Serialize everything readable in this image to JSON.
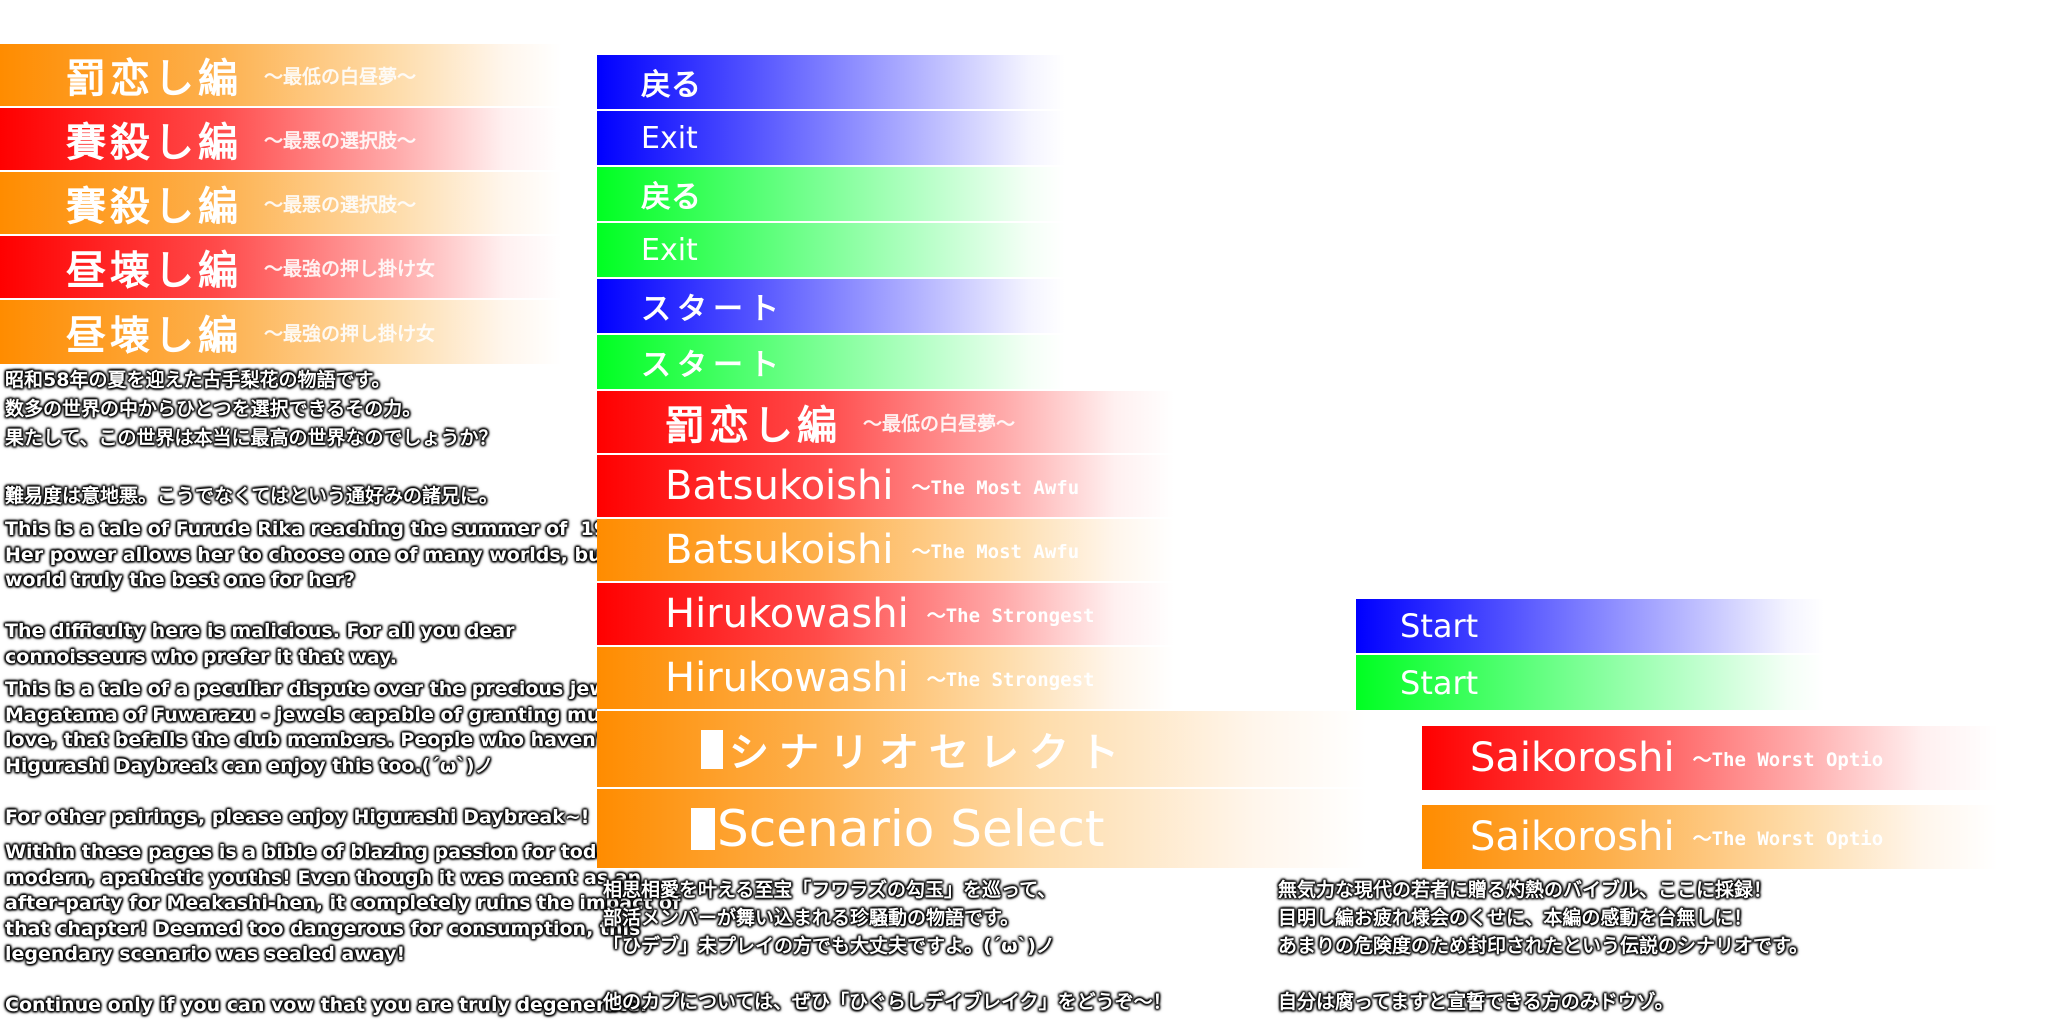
{
  "colors": {
    "orange": "#ff8c00",
    "red": "#ff0000",
    "blue": "#0000ff",
    "green": "#00ff22"
  },
  "left_banners": [
    {
      "title": "罰恋し編",
      "subtitle": "～最低の白昼夢～",
      "color": "orange"
    },
    {
      "title": "賽殺し編",
      "subtitle": "～最悪の選択肢～",
      "color": "red"
    },
    {
      "title": "賽殺し編",
      "subtitle": "～最悪の選択肢～",
      "color": "orange"
    },
    {
      "title": "昼壊し編",
      "subtitle": "～最強の押し掛け女",
      "color": "red"
    },
    {
      "title": "昼壊し編",
      "subtitle": "～最強の押し掛け女",
      "color": "orange"
    }
  ],
  "buttons": [
    {
      "label": "戻る",
      "color": "blue"
    },
    {
      "label": "Exit",
      "color": "blue"
    },
    {
      "label": "戻る",
      "color": "green"
    },
    {
      "label": "Exit",
      "color": "green"
    },
    {
      "label": "スタート",
      "color": "blue"
    },
    {
      "label": "スタート",
      "color": "green"
    }
  ],
  "mid_banners": [
    {
      "title": "罰恋し編",
      "subtitle": "～最低の白昼夢～",
      "color": "red"
    },
    {
      "title": "Batsukoishi",
      "subtitle": "～The Most Awfu",
      "color": "red"
    },
    {
      "title": "Batsukoishi",
      "subtitle": "～The Most Awfu",
      "color": "orange"
    },
    {
      "title": "Hirukowashi",
      "subtitle": "～The Strongest",
      "color": "red"
    },
    {
      "title": "Hirukowashi",
      "subtitle": "～The Strongest",
      "color": "orange"
    }
  ],
  "scenario_select": {
    "jp": "シナリオセレクト",
    "en": "Scenario Select"
  },
  "start_buttons": [
    {
      "label": "Start",
      "color": "blue"
    },
    {
      "label": "Start",
      "color": "green"
    }
  ],
  "saikoroshi": [
    {
      "title": "Saikoroshi",
      "subtitle": "～The Worst Optio",
      "color": "red"
    },
    {
      "title": "Saikoroshi",
      "subtitle": "～The Worst Optio",
      "color": "orange"
    }
  ],
  "descriptions": {
    "hirukowashi_jp": "昭和58年の夏を迎えた古手梨花の物語です。\n数多の世界の中からひとつを選択できるその力。\n果たして、この世界は本当に最高の世界なのでしょうか？\n\n難易度は意地悪。こうでなくてはという通好みの諸兄に。",
    "hirukowashi_en": "This is a tale of Furude Rika reaching the summer of  1983.\nHer power allows her to choose one of many worlds, but is this\nworld truly the best one for her?\n\nThe difficulty here is malicious. For all you dear\nconnoisseurs who prefer it that way.",
    "batsukoishi_en": "This is a tale of a peculiar dispute over the precious jewels, the\nMagatama of Fuwarazu - jewels capable of granting mutual\nlove, that befalls the club members. People who haven't played\nHigurashi Daybreak can enjoy this too.(´ω`)ノ\n\nFor other pairings, please enjoy Higurashi Daybreak~!",
    "saikoroshi_en": "Within these pages is a bible of blazing passion for today's\nmodern, apathetic youths! Even though it was meant as an\nafter-party for Meakashi-hen, it completely ruins the impact of\nthat chapter! Deemed too dangerous for consumption, this\nlegendary scenario was sealed away!\n\nContinue only if you can vow that you are truly degenerate.",
    "batsukoishi_jp": "相思相愛を叶える至宝「フワラズの勾玉」を巡って、\n部活メンバーが舞い込まれる珍騒動の物語です。\n「ひデブ」未プレイの方でも大丈夫ですよ。(´ω`)ノ\n\n他のカプについては、ぜひ「ひぐらしデイブレイク」をどうぞ～！",
    "saikoroshi_jp": "無気力な現代の若者に贈る灼熱のバイブル、ここに採録！\n目明し編お疲れ様会のくせに、本編の感動を台無しに！\nあまりの危険度のため封印されたという伝説のシナリオです。\n\n自分は腐ってますと宣誓できる方のみドウゾ。"
  }
}
